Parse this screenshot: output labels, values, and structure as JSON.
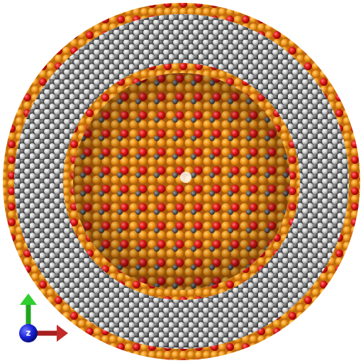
{
  "axis_indicator": {
    "label": "z"
  }
}
